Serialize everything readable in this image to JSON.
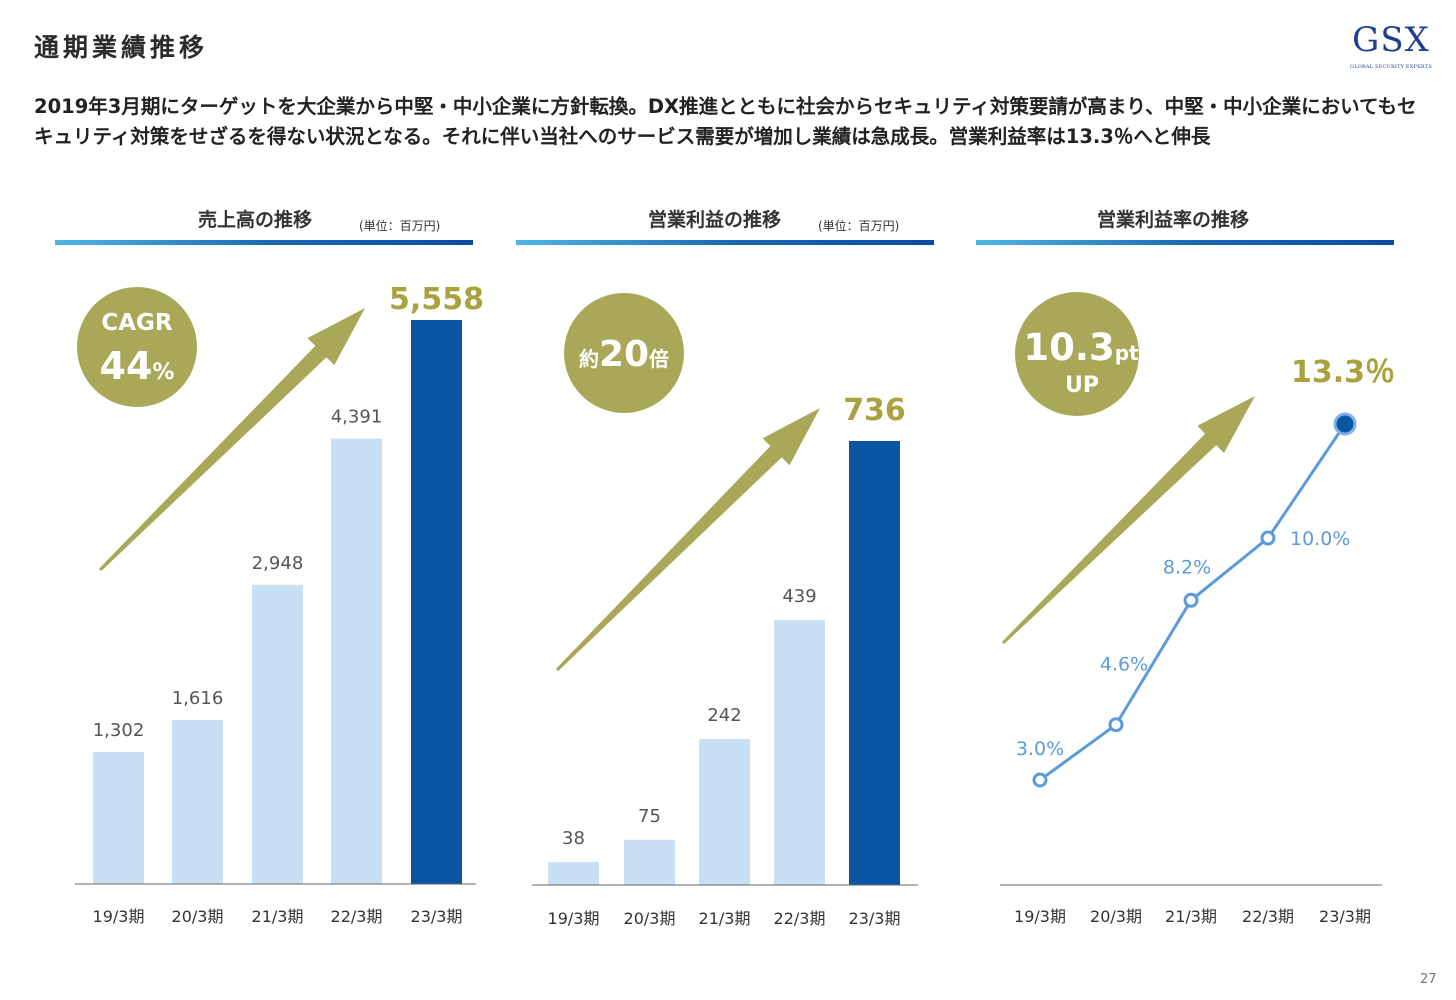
{
  "header": {
    "title": "通期業績推移",
    "logo_main": "GSX",
    "logo_sub": "GLOBAL SECURITY EXPERTS"
  },
  "description": "2019年3月期にターゲットを大企業から中堅・中小企業に方針転換。DX推進とともに社会からセキュリティ対策要請が高まり、中堅・中小企業においてもセキュリティ対策をせざるを得ない状況となる。それに伴い当社へのサービス需要が増加し業績は急成長。営業利益率は13.3％へと伸長",
  "panels": [
    {
      "title": "売上高の推移",
      "unit": "(単位：百万円)"
    },
    {
      "title": "営業利益の推移",
      "unit": "(単位：百万円)"
    },
    {
      "title": "営業利益率の推移",
      "unit": ""
    }
  ],
  "badges": [
    {
      "line1": "CAGR",
      "line2_num": "44",
      "line2_suffix": "%"
    },
    {
      "prefix": "約",
      "num": "20",
      "suffix": "倍"
    },
    {
      "num": "10.3",
      "suffix": "pt",
      "line2": "UP"
    }
  ],
  "colors": {
    "bar_light": "#c9dff4",
    "bar_dark": "#0a56a4",
    "olive": "#a9a858",
    "line": "#5b9bd9",
    "point_highlight": "#0a56a4",
    "label_olive": "#a9a23e"
  },
  "chart_data": [
    {
      "type": "bar",
      "title": "売上高の推移",
      "unit": "(単位：百万円)",
      "categories": [
        "19/3期",
        "20/3期",
        "21/3期",
        "22/3期",
        "23/3期"
      ],
      "values": [
        1302,
        1616,
        2948,
        4391,
        5558
      ],
      "labels": [
        "1,302",
        "1,616",
        "2,948",
        "4,391",
        "5,558"
      ],
      "highlight_index": 4,
      "ylim": [
        0,
        5558
      ]
    },
    {
      "type": "bar",
      "title": "営業利益の推移",
      "unit": "(単位：百万円)",
      "categories": [
        "19/3期",
        "20/3期",
        "21/3期",
        "22/3期",
        "23/3期"
      ],
      "values": [
        38,
        75,
        242,
        439,
        736
      ],
      "labels": [
        "38",
        "75",
        "242",
        "439",
        "736"
      ],
      "highlight_index": 4,
      "ylim": [
        0,
        736
      ]
    },
    {
      "type": "line",
      "title": "営業利益率の推移",
      "categories": [
        "19/3期",
        "20/3期",
        "21/3期",
        "22/3期",
        "23/3期"
      ],
      "values": [
        3.0,
        4.6,
        8.2,
        10.0,
        13.3
      ],
      "labels": [
        "3.0%",
        "4.6%",
        "8.2%",
        "10.0%",
        "13.3％"
      ],
      "highlight_index": 4,
      "ylim": [
        3.0,
        13.3
      ]
    }
  ],
  "page_number": "27"
}
